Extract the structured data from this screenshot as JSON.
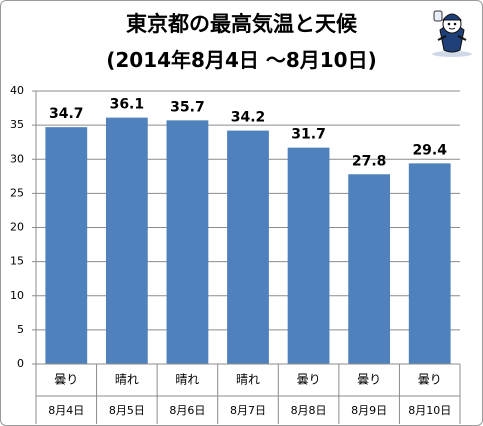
{
  "chart_data": {
    "type": "bar",
    "title": "東京都の最高気温と天候",
    "subtitle": "(2014年8月4日 〜8月10日)",
    "categories": [
      "8月4日",
      "8月5日",
      "8月6日",
      "8月7日",
      "8月8日",
      "8月9日",
      "8月10日"
    ],
    "weather": [
      "曇り",
      "晴れ",
      "晴れ",
      "晴れ",
      "曇り",
      "曇り",
      "曇り"
    ],
    "values": [
      34.7,
      36.1,
      35.7,
      34.2,
      31.7,
      27.8,
      29.4
    ],
    "data_labels": [
      "34.7",
      "36.1",
      "35.7",
      "34.2",
      "31.7",
      "27.8",
      "29.4"
    ],
    "yticks": [
      "0",
      "5",
      "10",
      "15",
      "20",
      "25",
      "30",
      "35",
      "40"
    ],
    "ylim": [
      0,
      40
    ],
    "grid": true,
    "bar_color": "#4f81bd"
  }
}
